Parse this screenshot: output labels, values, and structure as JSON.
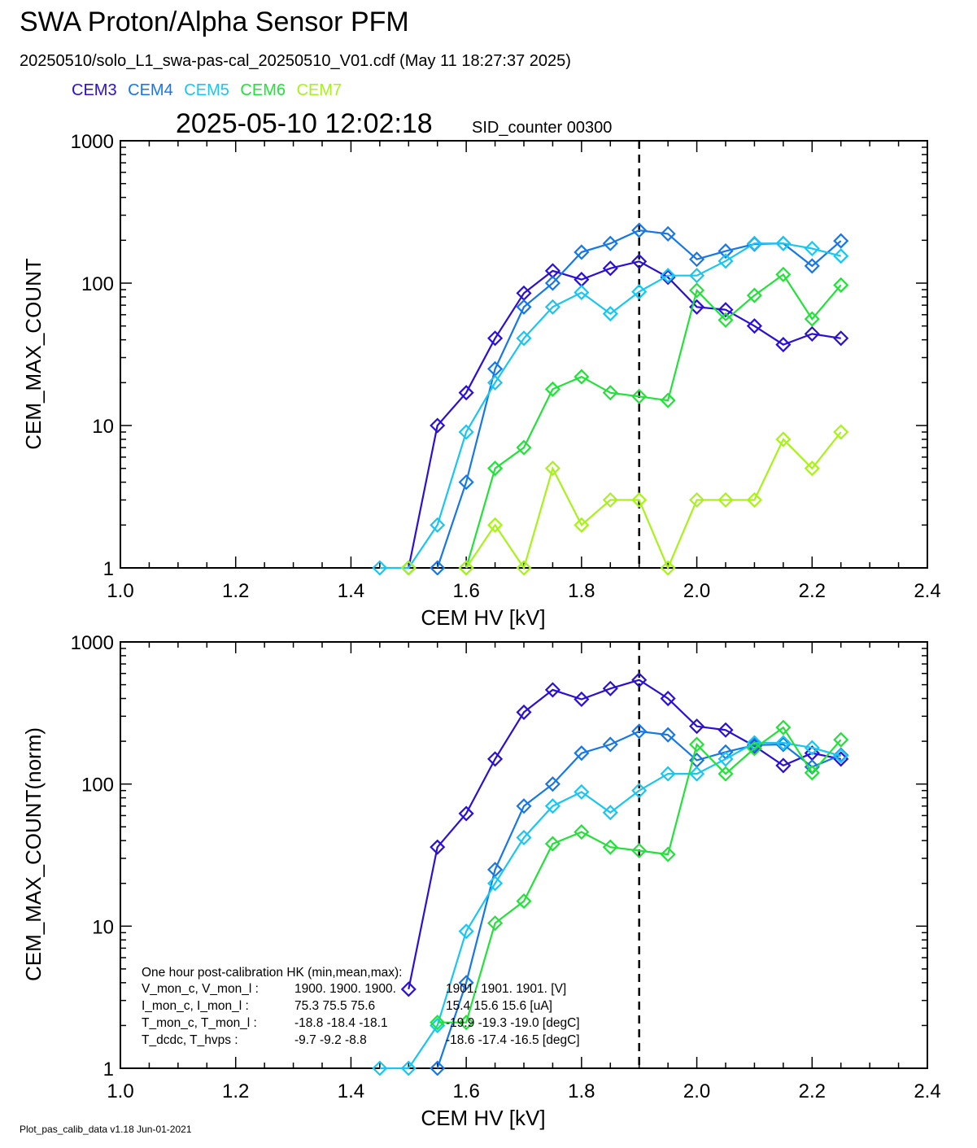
{
  "header": {
    "title": "SWA Proton/Alpha Sensor PFM",
    "subtitle": "20250510/solo_L1_swa-pas-cal_20250510_V01.cdf  (May 11 18:27:37 2025)",
    "timestamp": "2025-05-10 12:02:18",
    "sid": "SID_counter 00300"
  },
  "legend": [
    {
      "name": "CEM3",
      "color": "#2a10d6"
    },
    {
      "name": "CEM4",
      "color": "#1677e8"
    },
    {
      "name": "CEM5",
      "color": "#19c6f0"
    },
    {
      "name": "CEM6",
      "color": "#22e23a"
    },
    {
      "name": "CEM7",
      "color": "#a8f21a"
    }
  ],
  "footer": "Plot_pas_calib_data v1.18 Jun-01-2021",
  "hk": {
    "title": "One hour post-calibration HK (min,mean,max):",
    "rows": [
      [
        "V_mon_c, V_mon_l :",
        "1900.  1900.  1900.",
        "1901.  1901.  1901. [V]"
      ],
      [
        "I_mon_c,  I_mon_l :",
        "75.3   75.5   75.6",
        "15.4   15.6   15.6  [uA]"
      ],
      [
        "T_mon_c, T_mon_l :",
        "-18.8  -18.4  -18.1",
        "-19.9  -19.3  -19.0  [degC]"
      ],
      [
        "T_dcdc,    T_hvps :",
        "-9.7   -9.2   -8.8",
        "-18.6  -17.4  -16.5  [degC]"
      ]
    ]
  },
  "chart_data": [
    {
      "type": "line",
      "xlabel": "CEM HV [kV]",
      "ylabel": "CEM_MAX_COUNT",
      "xlim": [
        1.0,
        2.4
      ],
      "ylim": [
        1,
        1000
      ],
      "yscale": "log",
      "xticks": [
        "1.0",
        "1.2",
        "1.4",
        "1.6",
        "1.8",
        "2.0",
        "2.2",
        "2.4"
      ],
      "yticks": [
        "1",
        "10",
        "100",
        "1000"
      ],
      "vline": 1.9,
      "x": [
        1.45,
        1.5,
        1.55,
        1.6,
        1.65,
        1.7,
        1.75,
        1.8,
        1.85,
        1.9,
        1.95,
        2.0,
        2.05,
        2.1,
        2.15,
        2.2,
        2.25
      ],
      "series": [
        {
          "name": "CEM3",
          "color": "#2a10d6",
          "values": [
            null,
            1,
            10,
            17,
            41,
            85,
            122,
            106,
            127,
            142,
            110,
            68,
            65,
            50,
            37,
            44,
            41
          ]
        },
        {
          "name": "CEM4",
          "color": "#1677e8",
          "values": [
            null,
            null,
            1,
            4,
            25,
            68,
            100,
            165,
            190,
            235,
            222,
            147,
            168,
            188,
            190,
            132,
            198
          ]
        },
        {
          "name": "CEM5",
          "color": "#19c6f0",
          "values": [
            1,
            1,
            2,
            9,
            20,
            41,
            68,
            86,
            61,
            87,
            113,
            113,
            143,
            190,
            190,
            175,
            155
          ]
        },
        {
          "name": "CEM6",
          "color": "#22e23a",
          "values": [
            null,
            null,
            null,
            1,
            5,
            7,
            18,
            22,
            17,
            16,
            15,
            89,
            55,
            82,
            115,
            56,
            97
          ]
        },
        {
          "name": "CEM7",
          "color": "#a8f21a",
          "values": [
            null,
            1,
            null,
            1,
            2,
            1,
            5,
            2,
            3,
            3,
            1,
            3,
            3,
            3,
            8,
            5,
            9
          ]
        }
      ]
    },
    {
      "type": "line",
      "xlabel": "CEM HV [kV]",
      "ylabel": "CEM_MAX_COUNT(norm)",
      "xlim": [
        1.0,
        2.4
      ],
      "ylim": [
        1,
        1000
      ],
      "yscale": "log",
      "xticks": [
        "1.0",
        "1.2",
        "1.4",
        "1.6",
        "1.8",
        "2.0",
        "2.2",
        "2.4"
      ],
      "yticks": [
        "1",
        "10",
        "100",
        "1000"
      ],
      "vline": 1.9,
      "x": [
        1.45,
        1.5,
        1.55,
        1.6,
        1.65,
        1.7,
        1.75,
        1.8,
        1.85,
        1.9,
        1.95,
        2.0,
        2.05,
        2.1,
        2.15,
        2.2,
        2.25
      ],
      "series": [
        {
          "name": "CEM3",
          "color": "#2a10d6",
          "values": [
            null,
            3.6,
            36,
            62,
            150,
            320,
            460,
            395,
            470,
            540,
            400,
            255,
            240,
            185,
            135,
            165,
            150
          ]
        },
        {
          "name": "CEM4",
          "color": "#1677e8",
          "values": [
            null,
            null,
            1,
            4,
            25,
            70,
            100,
            165,
            190,
            235,
            222,
            147,
            168,
            188,
            190,
            132,
            160
          ]
        },
        {
          "name": "CEM5",
          "color": "#19c6f0",
          "values": [
            1,
            1,
            2,
            9.2,
            20,
            42,
            70,
            88,
            63,
            90,
            118,
            118,
            150,
            195,
            195,
            180,
            158
          ]
        },
        {
          "name": "CEM6",
          "color": "#22e23a",
          "values": [
            null,
            null,
            2.1,
            2.1,
            10.5,
            15,
            38,
            46,
            36,
            34,
            32,
            190,
            118,
            178,
            250,
            120,
            205
          ]
        }
      ]
    }
  ]
}
